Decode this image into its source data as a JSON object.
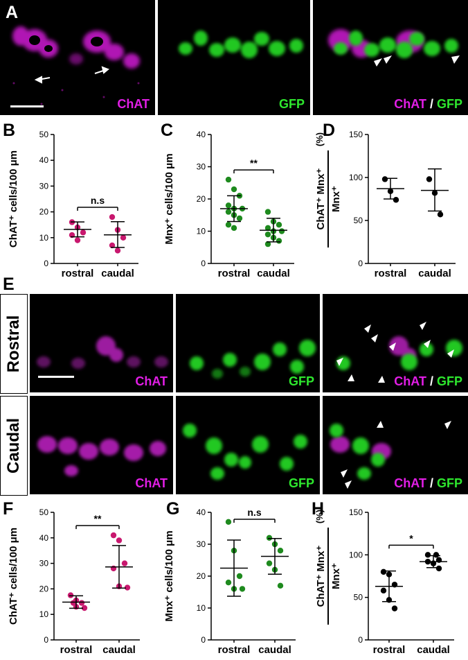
{
  "panel_letters": {
    "A": "A",
    "B": "B",
    "C": "C",
    "D": "D",
    "E": "E",
    "F": "F",
    "G": "G",
    "H": "H"
  },
  "panel_a": {
    "label_chat": "ChAT",
    "label_gfp": "GFP",
    "label_slash": "/"
  },
  "panel_e": {
    "row_rostral": "Rostral",
    "row_caudal": "Caudal",
    "label_chat": "ChAT",
    "label_gfp": "GFP",
    "label_slash": "/"
  },
  "colors": {
    "magenta": "#e21ee6",
    "green": "#2ee82e",
    "rose": "#c8186e",
    "dark_green": "#1e8a1e",
    "black": "#000000"
  },
  "chart_data": [
    {
      "id": "B",
      "type": "scatter",
      "ylabel": "ChAT⁺ cells/100 μm",
      "ylim": [
        0,
        50
      ],
      "yticks": [
        0,
        10,
        20,
        30,
        40,
        50
      ],
      "categories": [
        "rostral",
        "caudal"
      ],
      "color": "#c8186e",
      "points": [
        [
          16,
          14,
          12,
          11,
          9
        ],
        [
          18,
          13,
          10,
          7,
          5
        ]
      ],
      "mean": [
        13.2,
        11.1
      ],
      "sd_low": [
        10.3,
        6.2
      ],
      "sd_high": [
        16.1,
        16.2
      ],
      "sig": "n.s"
    },
    {
      "id": "C",
      "type": "scatter",
      "ylabel": "Mnx⁺ cells/100 μm",
      "ylim": [
        0,
        40
      ],
      "yticks": [
        0,
        10,
        20,
        30,
        40
      ],
      "categories": [
        "rostral",
        "caudal"
      ],
      "color": "#1e8a1e",
      "points": [
        [
          26,
          23,
          21,
          18,
          17,
          17,
          16,
          15,
          14,
          12,
          11
        ],
        [
          16,
          13,
          12,
          11,
          10,
          10,
          9,
          8,
          7,
          6
        ]
      ],
      "mean": [
        17,
        10.3
      ],
      "sd_low": [
        13,
        6.7
      ],
      "sd_high": [
        21,
        14
      ],
      "sig": "**"
    },
    {
      "id": "D",
      "type": "scatter",
      "ylabel": "Mnx⁺",
      "ylabel_num": "ChAT⁺ Mnx⁺",
      "ylabel_pct": "(%)",
      "ylim": [
        0,
        150
      ],
      "yticks": [
        0,
        50,
        100,
        150
      ],
      "categories": [
        "rostral",
        "caudal"
      ],
      "color": "#000000",
      "points": [
        [
          98,
          84,
          74
        ],
        [
          98,
          82,
          57
        ]
      ],
      "mean": [
        87,
        85
      ],
      "sd_low": [
        75,
        61
      ],
      "sd_high": [
        99,
        110
      ],
      "sig": ""
    },
    {
      "id": "F",
      "type": "scatter",
      "ylabel": "ChAT⁺ cells/100 μm",
      "ylim": [
        0,
        50
      ],
      "yticks": [
        0,
        10,
        20,
        30,
        40,
        50
      ],
      "categories": [
        "rostral",
        "caudal"
      ],
      "color": "#c8186e",
      "points": [
        [
          17.5,
          15.5,
          14.5,
          14.5,
          13,
          12.5
        ],
        [
          41,
          39,
          30,
          28,
          21,
          20.5
        ]
      ],
      "mean": [
        14.8,
        28.6
      ],
      "sd_low": [
        12.4,
        20.3
      ],
      "sd_high": [
        17.3,
        37
      ],
      "sig": "**"
    },
    {
      "id": "G",
      "type": "scatter",
      "ylabel": "Mnx⁺ cells/100 μm",
      "ylim": [
        0,
        40
      ],
      "yticks": [
        0,
        10,
        20,
        30,
        40
      ],
      "categories": [
        "rostral",
        "caudal"
      ],
      "color": "#1e8a1e",
      "points": [
        [
          37,
          28,
          20,
          18,
          16,
          16
        ],
        [
          32,
          30,
          28,
          24,
          22,
          17
        ]
      ],
      "mean": [
        22.5,
        26.2
      ],
      "sd_low": [
        13.7,
        20.6
      ],
      "sd_high": [
        31.3,
        31.8
      ],
      "sig": "n.s"
    },
    {
      "id": "H",
      "type": "scatter",
      "ylabel": "Mnx⁺",
      "ylabel_num": "ChAT⁺ Mnx⁺",
      "ylabel_pct": "(%)",
      "ylim": [
        0,
        150
      ],
      "yticks": [
        0,
        50,
        100,
        150
      ],
      "categories": [
        "rostral",
        "caudal"
      ],
      "color": "#000000",
      "points": [
        [
          80,
          77,
          65,
          58,
          47,
          37
        ],
        [
          100,
          100,
          94,
          92,
          90,
          84
        ]
      ],
      "mean": [
        63,
        92
      ],
      "sd_low": [
        45,
        85
      ],
      "sd_high": [
        81,
        99
      ],
      "sig": "*"
    }
  ]
}
